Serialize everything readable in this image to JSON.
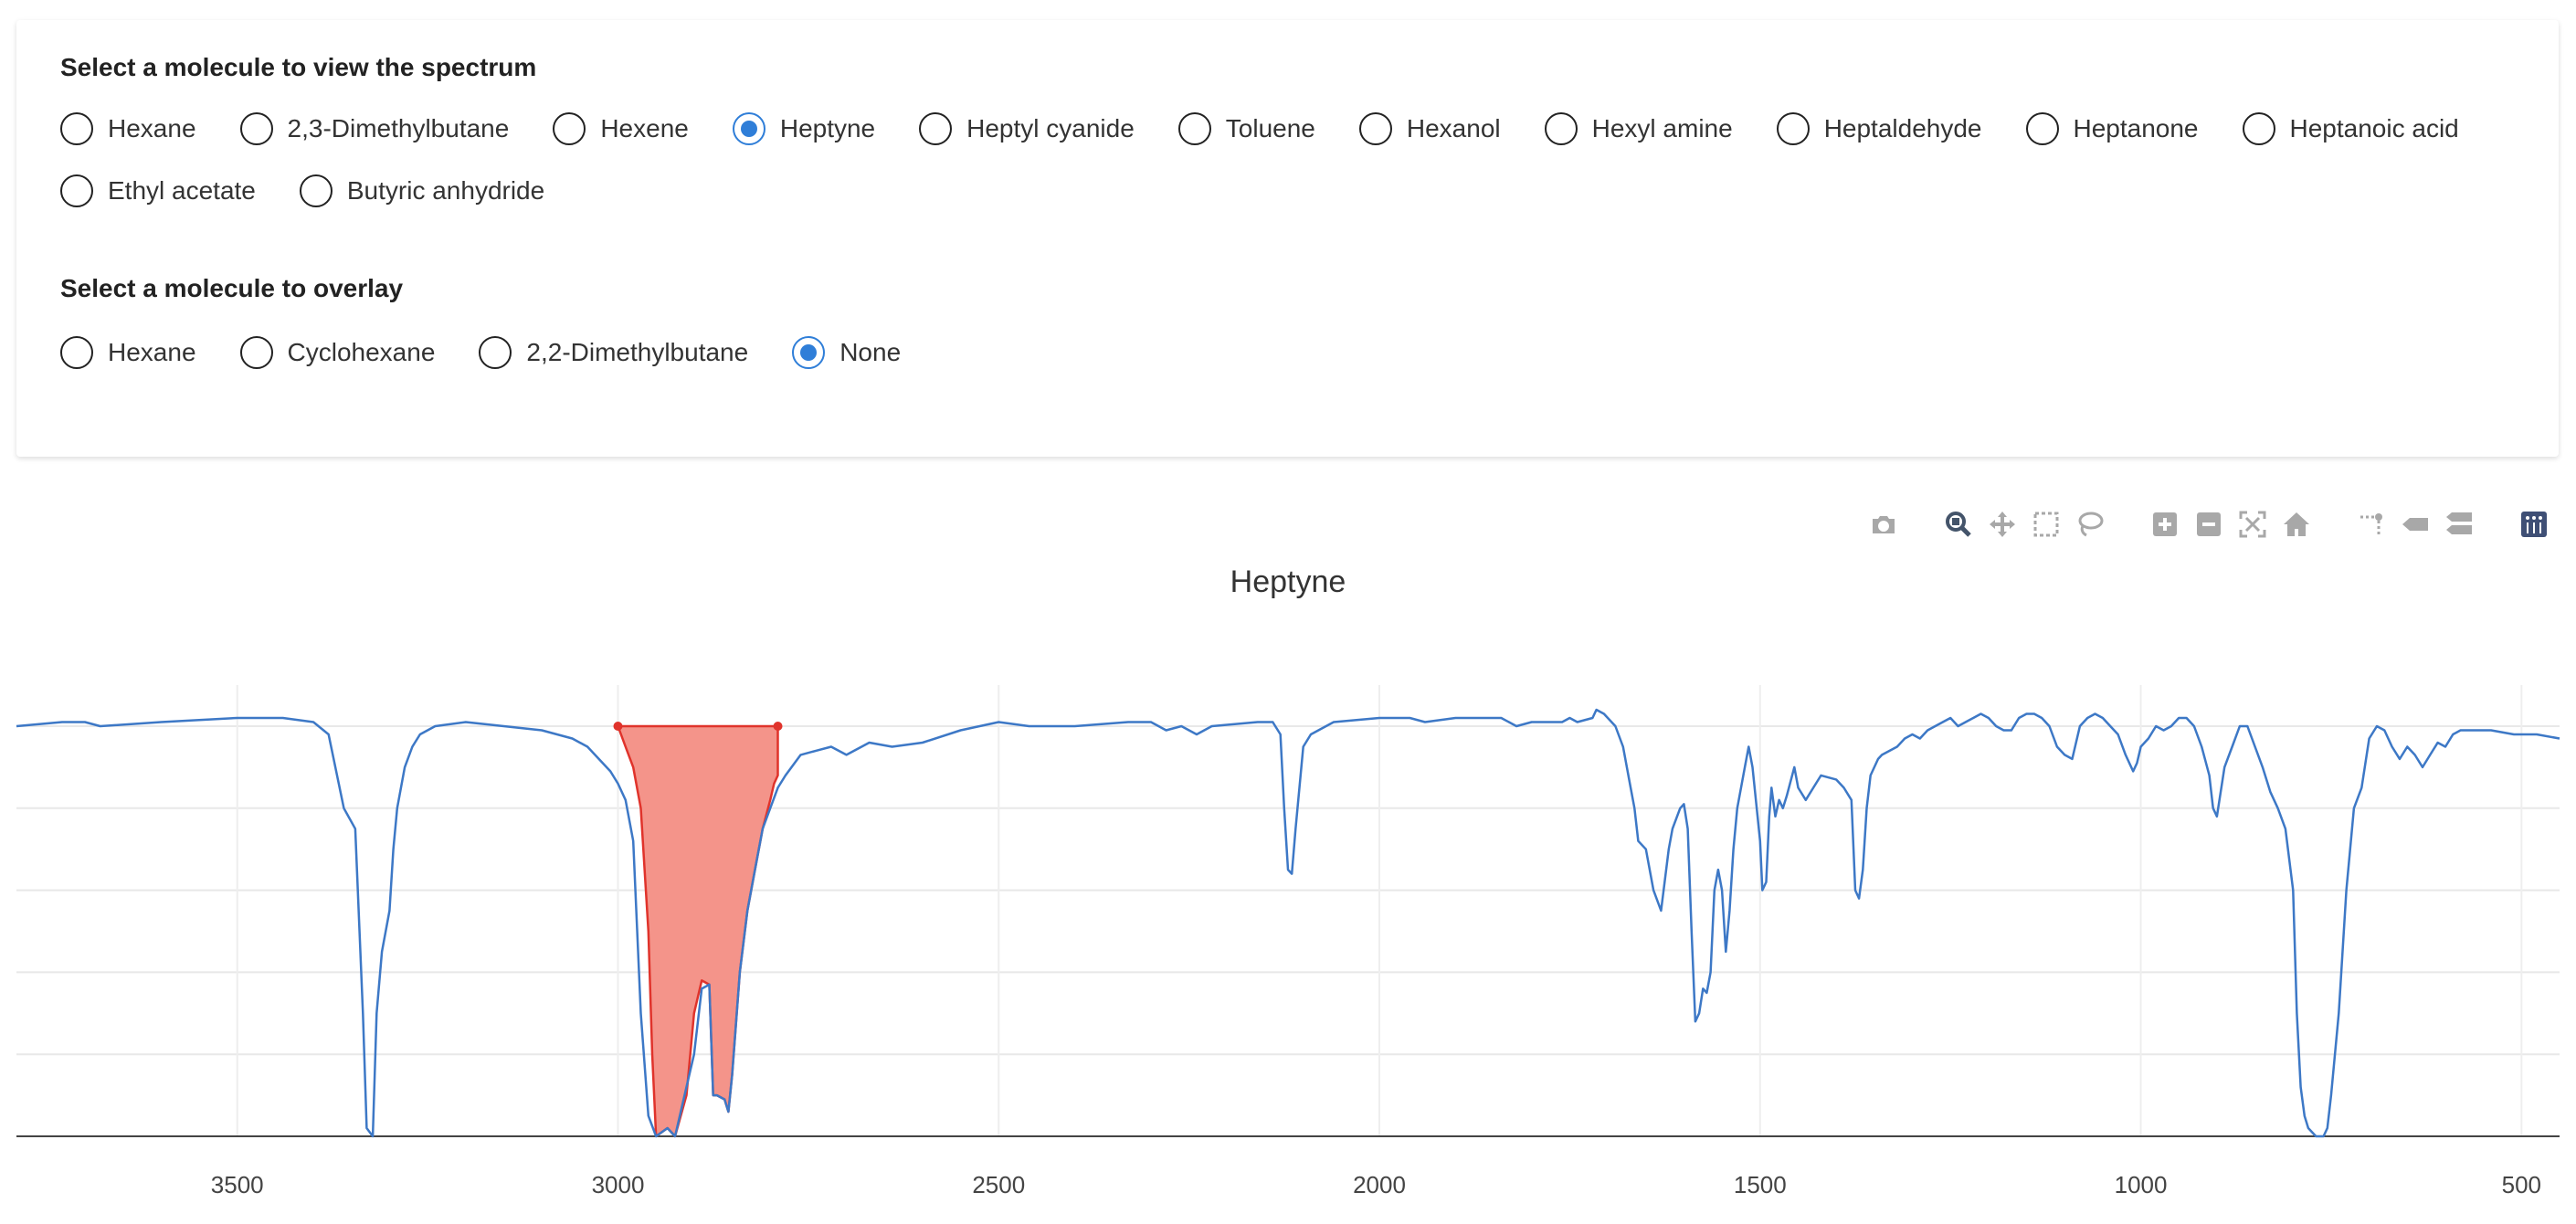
{
  "spectrum_section": {
    "title": "Select a molecule to view the spectrum",
    "options": [
      "Hexane",
      "2,3-Dimethylbutane",
      "Hexene",
      "Heptyne",
      "Heptyl cyanide",
      "Toluene",
      "Hexanol",
      "Hexyl amine",
      "Heptaldehyde",
      "Heptanone",
      "Heptanoic acid",
      "Ethyl acetate",
      "Butyric anhydride"
    ],
    "selected": "Heptyne"
  },
  "overlay_section": {
    "title": "Select a molecule to overlay",
    "options": [
      "Hexane",
      "Cyclohexane",
      "2,2-Dimethylbutane",
      "None"
    ],
    "selected": "None"
  },
  "modebar": {
    "buttons": [
      "camera-icon",
      "zoom-icon",
      "pan-icon",
      "box-select-icon",
      "lasso-select-icon",
      "zoom-in-icon",
      "zoom-out-icon",
      "autoscale-icon",
      "reset-axes-icon",
      "spike-lines-icon",
      "hover-closest-icon",
      "hover-compare-icon",
      "plotly-logo-icon"
    ],
    "active": "zoom-icon"
  },
  "colors": {
    "accent": "#2f7ed8",
    "spectrum_line": "#3d78c6",
    "highlight_fill": "#f4948a",
    "highlight_line": "#e0332b"
  },
  "chart_data": {
    "type": "line",
    "title": "Heptyne",
    "xlabel": "",
    "ylabel": "",
    "x_reversed": true,
    "xlim": [
      3790,
      450
    ],
    "ylim": [
      0,
      1.0
    ],
    "xticks": [
      3500,
      3000,
      2500,
      2000,
      1500,
      1000,
      500
    ],
    "grid": true,
    "series": [
      {
        "color": "#3d78c6",
        "points": [
          [
            3790,
            1.0
          ],
          [
            3730,
            1.01
          ],
          [
            3700,
            1.01
          ],
          [
            3680,
            1.0
          ],
          [
            3600,
            1.01
          ],
          [
            3500,
            1.02
          ],
          [
            3440,
            1.02
          ],
          [
            3400,
            1.01
          ],
          [
            3380,
            0.98
          ],
          [
            3360,
            0.8
          ],
          [
            3345,
            0.75
          ],
          [
            3335,
            0.3
          ],
          [
            3330,
            0.02
          ],
          [
            3322,
            0.0
          ],
          [
            3317,
            0.3
          ],
          [
            3310,
            0.45
          ],
          [
            3300,
            0.55
          ],
          [
            3295,
            0.7
          ],
          [
            3290,
            0.8
          ],
          [
            3280,
            0.9
          ],
          [
            3270,
            0.95
          ],
          [
            3260,
            0.98
          ],
          [
            3240,
            1.0
          ],
          [
            3200,
            1.01
          ],
          [
            3150,
            1.0
          ],
          [
            3100,
            0.99
          ],
          [
            3060,
            0.97
          ],
          [
            3040,
            0.95
          ],
          [
            3010,
            0.89
          ],
          [
            3000,
            0.86
          ],
          [
            2990,
            0.82
          ],
          [
            2980,
            0.72
          ],
          [
            2970,
            0.3
          ],
          [
            2960,
            0.05
          ],
          [
            2950,
            0.0
          ],
          [
            2935,
            0.02
          ],
          [
            2925,
            0.0
          ],
          [
            2900,
            0.2
          ],
          [
            2890,
            0.36
          ],
          [
            2880,
            0.37
          ],
          [
            2875,
            0.1
          ],
          [
            2870,
            0.1
          ],
          [
            2860,
            0.09
          ],
          [
            2855,
            0.06
          ],
          [
            2850,
            0.15
          ],
          [
            2840,
            0.4
          ],
          [
            2830,
            0.55
          ],
          [
            2820,
            0.65
          ],
          [
            2810,
            0.75
          ],
          [
            2800,
            0.8
          ],
          [
            2790,
            0.85
          ],
          [
            2780,
            0.88
          ],
          [
            2760,
            0.93
          ],
          [
            2740,
            0.94
          ],
          [
            2720,
            0.95
          ],
          [
            2700,
            0.93
          ],
          [
            2670,
            0.96
          ],
          [
            2640,
            0.95
          ],
          [
            2600,
            0.96
          ],
          [
            2550,
            0.99
          ],
          [
            2500,
            1.01
          ],
          [
            2460,
            1.0
          ],
          [
            2400,
            1.0
          ],
          [
            2330,
            1.01
          ],
          [
            2300,
            1.01
          ],
          [
            2280,
            0.99
          ],
          [
            2260,
            1.0
          ],
          [
            2240,
            0.98
          ],
          [
            2220,
            1.0
          ],
          [
            2160,
            1.01
          ],
          [
            2140,
            1.01
          ],
          [
            2130,
            0.98
          ],
          [
            2125,
            0.8
          ],
          [
            2120,
            0.65
          ],
          [
            2115,
            0.64
          ],
          [
            2110,
            0.75
          ],
          [
            2100,
            0.95
          ],
          [
            2090,
            0.98
          ],
          [
            2080,
            0.99
          ],
          [
            2060,
            1.01
          ],
          [
            2000,
            1.02
          ],
          [
            1960,
            1.02
          ],
          [
            1940,
            1.01
          ],
          [
            1900,
            1.02
          ],
          [
            1840,
            1.02
          ],
          [
            1820,
            1.0
          ],
          [
            1800,
            1.01
          ],
          [
            1760,
            1.01
          ],
          [
            1750,
            1.02
          ],
          [
            1740,
            1.01
          ],
          [
            1720,
            1.02
          ],
          [
            1715,
            1.04
          ],
          [
            1705,
            1.03
          ],
          [
            1690,
            1.0
          ],
          [
            1680,
            0.95
          ],
          [
            1670,
            0.85
          ],
          [
            1665,
            0.8
          ],
          [
            1660,
            0.72
          ],
          [
            1650,
            0.7
          ],
          [
            1640,
            0.6
          ],
          [
            1630,
            0.55
          ],
          [
            1620,
            0.7
          ],
          [
            1615,
            0.75
          ],
          [
            1605,
            0.8
          ],
          [
            1600,
            0.81
          ],
          [
            1595,
            0.75
          ],
          [
            1590,
            0.5
          ],
          [
            1585,
            0.28
          ],
          [
            1580,
            0.3
          ],
          [
            1575,
            0.36
          ],
          [
            1570,
            0.35
          ],
          [
            1565,
            0.4
          ],
          [
            1560,
            0.6
          ],
          [
            1555,
            0.65
          ],
          [
            1550,
            0.6
          ],
          [
            1545,
            0.45
          ],
          [
            1540,
            0.55
          ],
          [
            1535,
            0.7
          ],
          [
            1530,
            0.8
          ],
          [
            1520,
            0.9
          ],
          [
            1515,
            0.95
          ],
          [
            1510,
            0.9
          ],
          [
            1500,
            0.72
          ],
          [
            1497,
            0.6
          ],
          [
            1492,
            0.62
          ],
          [
            1488,
            0.78
          ],
          [
            1485,
            0.85
          ],
          [
            1480,
            0.78
          ],
          [
            1475,
            0.82
          ],
          [
            1470,
            0.8
          ],
          [
            1465,
            0.83
          ],
          [
            1455,
            0.9
          ],
          [
            1450,
            0.85
          ],
          [
            1440,
            0.82
          ],
          [
            1430,
            0.85
          ],
          [
            1420,
            0.88
          ],
          [
            1400,
            0.87
          ],
          [
            1390,
            0.85
          ],
          [
            1380,
            0.82
          ],
          [
            1375,
            0.6
          ],
          [
            1370,
            0.58
          ],
          [
            1365,
            0.65
          ],
          [
            1360,
            0.8
          ],
          [
            1355,
            0.88
          ],
          [
            1345,
            0.92
          ],
          [
            1340,
            0.93
          ],
          [
            1320,
            0.95
          ],
          [
            1310,
            0.97
          ],
          [
            1300,
            0.98
          ],
          [
            1290,
            0.97
          ],
          [
            1280,
            0.99
          ],
          [
            1270,
            1.0
          ],
          [
            1260,
            1.01
          ],
          [
            1250,
            1.02
          ],
          [
            1240,
            1.0
          ],
          [
            1230,
            1.01
          ],
          [
            1220,
            1.02
          ],
          [
            1210,
            1.03
          ],
          [
            1200,
            1.02
          ],
          [
            1190,
            1.0
          ],
          [
            1180,
            0.99
          ],
          [
            1170,
            0.99
          ],
          [
            1160,
            1.02
          ],
          [
            1150,
            1.03
          ],
          [
            1140,
            1.03
          ],
          [
            1130,
            1.02
          ],
          [
            1120,
            1.0
          ],
          [
            1110,
            0.95
          ],
          [
            1100,
            0.93
          ],
          [
            1090,
            0.92
          ],
          [
            1080,
            1.0
          ],
          [
            1070,
            1.02
          ],
          [
            1060,
            1.03
          ],
          [
            1050,
            1.02
          ],
          [
            1040,
            1.0
          ],
          [
            1030,
            0.98
          ],
          [
            1020,
            0.93
          ],
          [
            1010,
            0.89
          ],
          [
            1005,
            0.91
          ],
          [
            1000,
            0.95
          ],
          [
            990,
            0.97
          ],
          [
            980,
            1.0
          ],
          [
            970,
            0.99
          ],
          [
            960,
            1.0
          ],
          [
            950,
            1.02
          ],
          [
            940,
            1.02
          ],
          [
            930,
            1.0
          ],
          [
            920,
            0.95
          ],
          [
            910,
            0.88
          ],
          [
            905,
            0.8
          ],
          [
            900,
            0.78
          ],
          [
            890,
            0.9
          ],
          [
            880,
            0.95
          ],
          [
            870,
            1.0
          ],
          [
            860,
            1.0
          ],
          [
            850,
            0.95
          ],
          [
            840,
            0.9
          ],
          [
            830,
            0.84
          ],
          [
            820,
            0.8
          ],
          [
            810,
            0.75
          ],
          [
            800,
            0.6
          ],
          [
            795,
            0.3
          ],
          [
            790,
            0.12
          ],
          [
            785,
            0.05
          ],
          [
            780,
            0.02
          ],
          [
            770,
            0.0
          ],
          [
            760,
            0.0
          ],
          [
            755,
            0.02
          ],
          [
            750,
            0.1
          ],
          [
            740,
            0.3
          ],
          [
            730,
            0.6
          ],
          [
            720,
            0.8
          ],
          [
            710,
            0.85
          ],
          [
            700,
            0.97
          ],
          [
            690,
            1.0
          ],
          [
            680,
            0.99
          ],
          [
            670,
            0.95
          ],
          [
            660,
            0.92
          ],
          [
            650,
            0.95
          ],
          [
            640,
            0.93
          ],
          [
            630,
            0.9
          ],
          [
            620,
            0.93
          ],
          [
            610,
            0.96
          ],
          [
            600,
            0.95
          ],
          [
            590,
            0.98
          ],
          [
            580,
            0.99
          ],
          [
            560,
            0.99
          ],
          [
            540,
            0.99
          ],
          [
            510,
            0.98
          ],
          [
            480,
            0.98
          ],
          [
            450,
            0.97
          ]
        ]
      },
      {
        "color": "#e0332b",
        "fill": "#f4948a",
        "x_range": [
          3000,
          2790
        ],
        "points": [
          [
            3000,
            1.0
          ],
          [
            2990,
            0.95
          ],
          [
            2980,
            0.9
          ],
          [
            2970,
            0.8
          ],
          [
            2960,
            0.5
          ],
          [
            2955,
            0.2
          ],
          [
            2950,
            0.0
          ],
          [
            2935,
            0.02
          ],
          [
            2925,
            0.0
          ],
          [
            2910,
            0.1
          ],
          [
            2900,
            0.3
          ],
          [
            2890,
            0.38
          ],
          [
            2880,
            0.37
          ],
          [
            2875,
            0.1
          ],
          [
            2870,
            0.1
          ],
          [
            2860,
            0.09
          ],
          [
            2855,
            0.06
          ],
          [
            2850,
            0.15
          ],
          [
            2840,
            0.4
          ],
          [
            2830,
            0.55
          ],
          [
            2820,
            0.65
          ],
          [
            2810,
            0.75
          ],
          [
            2800,
            0.82
          ],
          [
            2795,
            0.86
          ],
          [
            2790,
            0.88
          ],
          [
            2790,
            1.0
          ]
        ]
      }
    ]
  }
}
